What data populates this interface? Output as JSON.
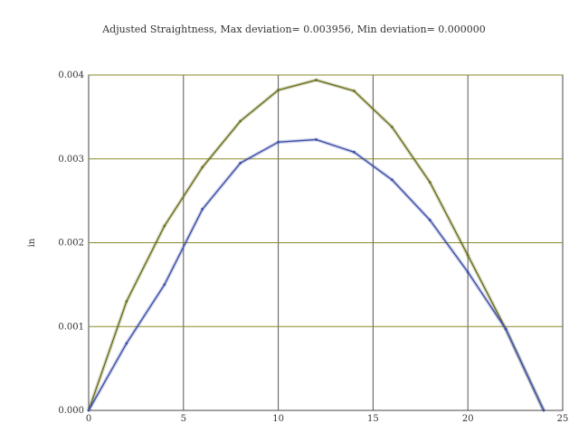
{
  "chart_data": {
    "type": "line",
    "title": "Adjusted Straightness, Max deviation= 0.003956, Min deviation= 0.000000",
    "xlabel": "",
    "ylabel": "in",
    "xlim": [
      0,
      25
    ],
    "ylim": [
      0,
      0.004
    ],
    "x_ticks": [
      "0",
      "5",
      "10",
      "15",
      "20",
      "25"
    ],
    "y_ticks": [
      "0.000",
      "0.001",
      "0.002",
      "0.003",
      "0.004"
    ],
    "grid": true,
    "series": [
      {
        "color": "#6b6f1e",
        "x": [
          0,
          2,
          4,
          6,
          8,
          10,
          12,
          14,
          16,
          18,
          20,
          22,
          24
        ],
        "y": [
          0.0,
          0.0013,
          0.0022,
          0.0029,
          0.00345,
          0.00382,
          0.00394,
          0.00381,
          0.00338,
          0.00272,
          0.00185,
          0.00097,
          0.0
        ]
      },
      {
        "color": "#3f4fa8",
        "x": [
          0,
          2,
          4,
          6,
          8,
          10,
          12,
          14,
          16,
          18,
          20,
          22,
          24
        ],
        "y": [
          0.0,
          0.0008,
          0.0015,
          0.0024,
          0.00295,
          0.0032,
          0.00323,
          0.00308,
          0.00275,
          0.00227,
          0.00165,
          0.00097,
          0.0
        ]
      }
    ]
  }
}
